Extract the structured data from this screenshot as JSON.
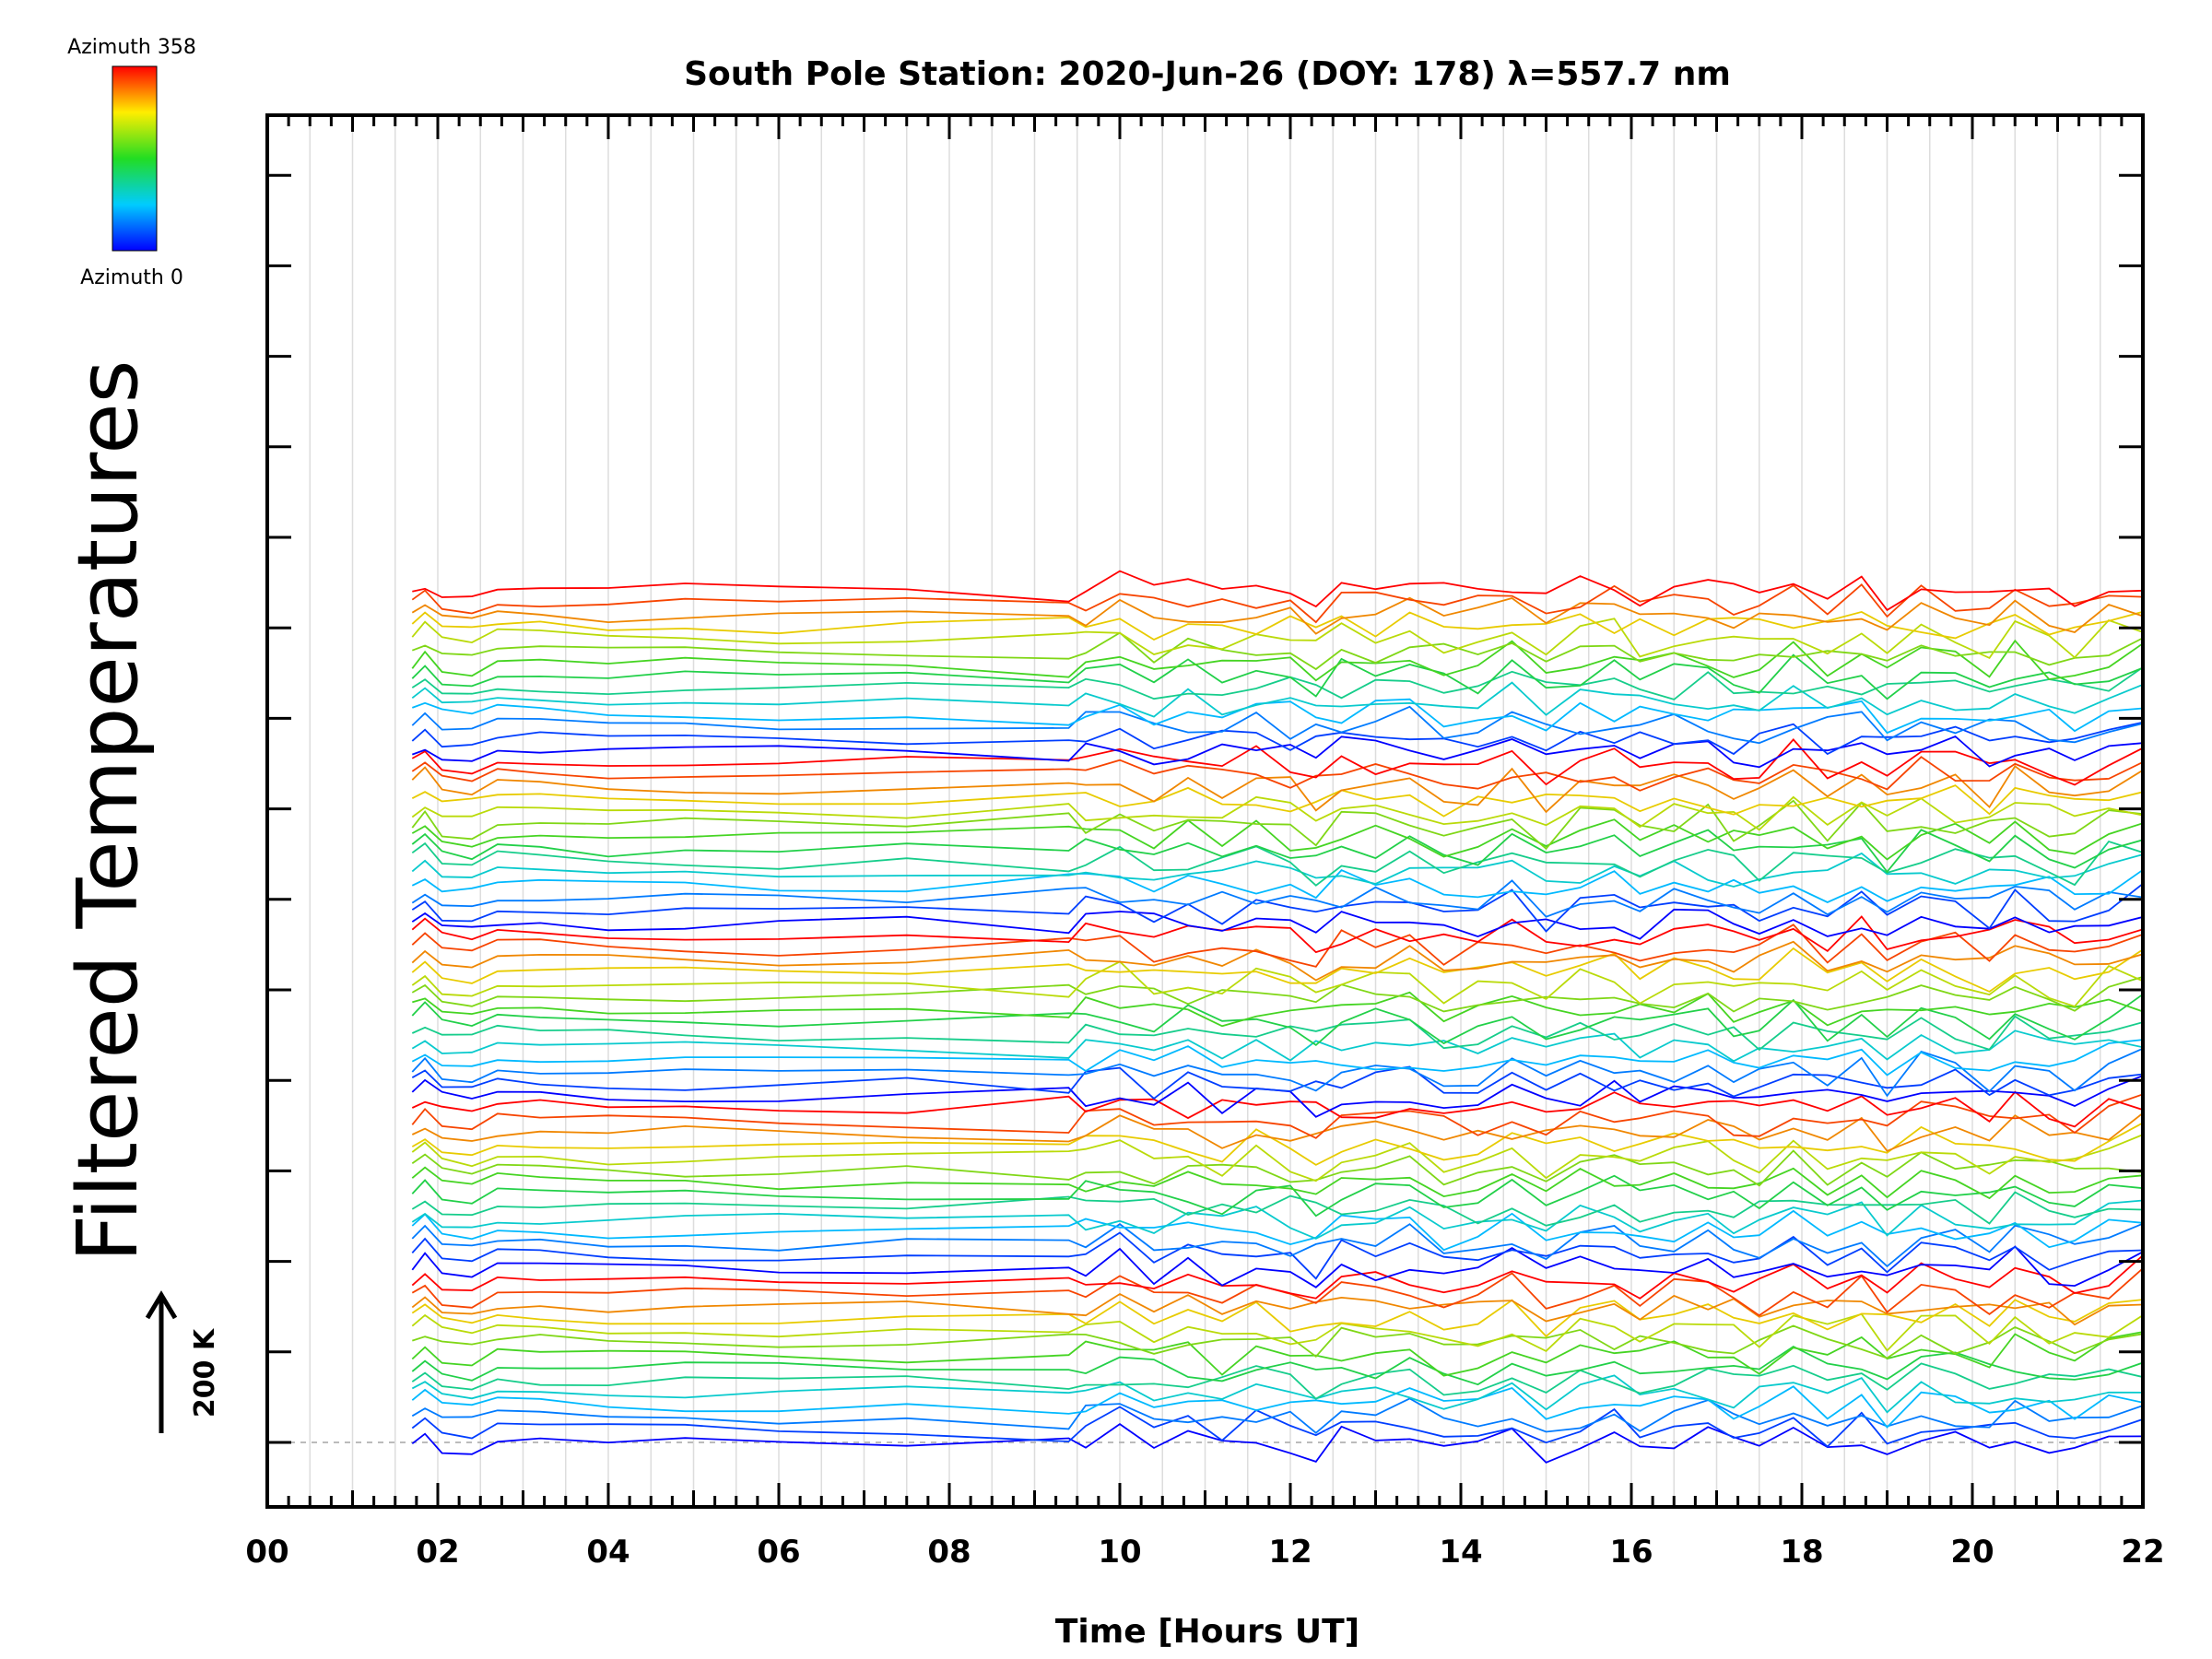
{
  "chart_data": {
    "type": "line",
    "title": "South Pole Station: 2020-Jun-26 (DOY: 178) λ=557.7 nm",
    "xlabel": "Time [Hours UT]",
    "ylabel": "Filtered Temperatures",
    "xlim": [
      0,
      22
    ],
    "x_tick_labels": [
      "00",
      "02",
      "04",
      "06",
      "08",
      "10",
      "12",
      "14",
      "16",
      "18",
      "20",
      "22"
    ],
    "x_tick_values": [
      0,
      2,
      4,
      6,
      8,
      10,
      12,
      14,
      16,
      18,
      20,
      22
    ],
    "scale_bar_label": "200 K",
    "legend": {
      "top_label": "Azimuth 358",
      "bottom_label": "Azimuth 0",
      "colormap": "rainbow (blue→cyan→green→yellow→red)"
    },
    "series_count": 70,
    "azimuth_range": [
      0,
      358
    ],
    "sample_times_hours": [
      1.7,
      1.85,
      2.05,
      2.4,
      2.7,
      3.2,
      4.0,
      4.9,
      6.0,
      7.5,
      9.4,
      9.6,
      10.0,
      10.4,
      10.8,
      11.2,
      11.6,
      12.0,
      12.3,
      12.6,
      13.0,
      13.4,
      13.8,
      14.2,
      14.6,
      15.0,
      15.4,
      15.8,
      16.1,
      16.5,
      16.9,
      17.2,
      17.5,
      17.9,
      18.3,
      18.7,
      19.0,
      19.4,
      19.8,
      20.2,
      20.5,
      20.9,
      21.2,
      21.6,
      22.0
    ],
    "common_signal": [
      0.2,
      1.2,
      -0.3,
      -0.6,
      0.4,
      0.3,
      0.0,
      0.1,
      -0.1,
      0.0,
      0.0,
      0.2,
      0.9,
      -0.3,
      0.4,
      -0.5,
      0.6,
      -0.1,
      -0.9,
      0.5,
      0.1,
      0.8,
      -0.6,
      -0.4,
      0.9,
      -0.8,
      0.3,
      0.7,
      -0.5,
      0.2,
      0.6,
      -0.3,
      -0.7,
      1.0,
      -0.4,
      0.8,
      -1.1,
      0.7,
      0.3,
      -0.6,
      0.9,
      -0.2,
      -0.9,
      0.6,
      1.3
    ]
  }
}
